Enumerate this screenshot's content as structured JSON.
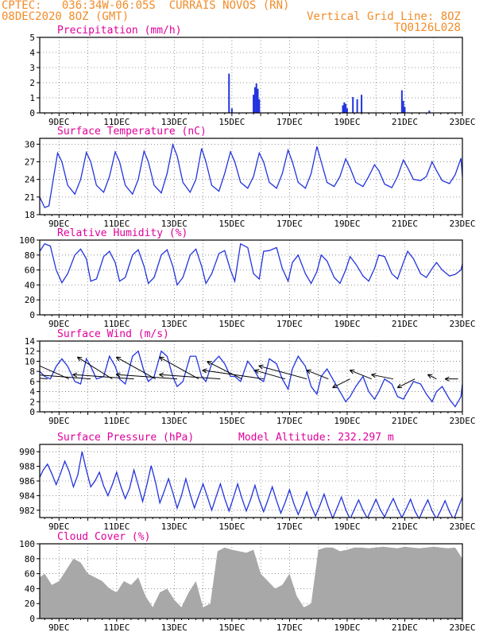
{
  "header": {
    "line1_left": "CPTEC:   036:34W-06:05S  CURRAIS NOVOS (RN)",
    "line2_left": "08DEC2020 8OZ (GMT)",
    "line1_right": "Vertical Grid Line: 8OZ",
    "line2_right": "TQ0126L028"
  },
  "colors": {
    "header": "#f28c28",
    "title": "#e0009a",
    "line": "#2233dd",
    "cloud": "#a8a8a8"
  },
  "chart_data": [
    {
      "type": "bar",
      "title": "Precipitation (mm/h)",
      "x_tick_labels": [
        "9DEC",
        "11DEC",
        "13DEC",
        "15DEC",
        "17DEC",
        "19DEC",
        "21DEC",
        "23DEC"
      ],
      "xlim_days": [
        8.33,
        23.0
      ],
      "ylim": [
        0,
        5
      ],
      "y_ticks": [
        0,
        1,
        2,
        3,
        4,
        5
      ],
      "bars": [
        [
          9.5,
          0.05
        ],
        [
          11.5,
          0.04
        ],
        [
          13.2,
          0.03
        ],
        [
          14.9,
          2.6
        ],
        [
          15.0,
          0.3
        ],
        [
          15.75,
          1.2
        ],
        [
          15.8,
          1.7
        ],
        [
          15.85,
          1.95
        ],
        [
          15.9,
          1.6
        ],
        [
          15.95,
          0.9
        ],
        [
          18.85,
          0.5
        ],
        [
          18.9,
          0.7
        ],
        [
          18.95,
          0.6
        ],
        [
          19.0,
          0.3
        ],
        [
          19.2,
          1.05
        ],
        [
          19.35,
          0.9
        ],
        [
          19.5,
          1.2
        ],
        [
          20.9,
          1.5
        ],
        [
          20.95,
          0.8
        ],
        [
          21.0,
          0.4
        ],
        [
          21.85,
          0.15
        ]
      ]
    },
    {
      "type": "line",
      "title": "Surface Temperature (nC)",
      "x_tick_labels": [
        "9DEC",
        "11DEC",
        "13DEC",
        "15DEC",
        "17DEC",
        "19DEC",
        "21DEC",
        "23DEC"
      ],
      "xlim_days": [
        8.33,
        23.0
      ],
      "ylim": [
        18,
        31
      ],
      "y_ticks": [
        18,
        21,
        24,
        27,
        30
      ],
      "x": [
        8.33,
        8.5,
        8.65,
        8.8,
        8.95,
        9.1,
        9.3,
        9.55,
        9.75,
        9.95,
        10.1,
        10.3,
        10.55,
        10.75,
        10.95,
        11.1,
        11.3,
        11.55,
        11.75,
        11.95,
        12.1,
        12.3,
        12.55,
        12.75,
        12.95,
        13.1,
        13.3,
        13.55,
        13.75,
        13.95,
        14.1,
        14.3,
        14.55,
        14.75,
        14.95,
        15.1,
        15.3,
        15.55,
        15.75,
        15.95,
        16.1,
        16.3,
        16.55,
        16.75,
        16.95,
        17.1,
        17.3,
        17.55,
        17.75,
        17.95,
        18.1,
        18.3,
        18.55,
        18.75,
        18.95,
        19.1,
        19.3,
        19.55,
        19.75,
        19.95,
        20.1,
        20.3,
        20.55,
        20.75,
        20.95,
        21.1,
        21.3,
        21.55,
        21.75,
        21.95,
        22.1,
        22.3,
        22.55,
        22.75,
        22.95,
        23.0
      ],
      "y": [
        21,
        19.2,
        19.5,
        24,
        28.5,
        27,
        23,
        21.5,
        24,
        28.6,
        27,
        23,
        21.8,
        24.5,
        28.7,
        27,
        23,
        21.5,
        24,
        28.8,
        27,
        23,
        21.7,
        25,
        29.9,
        28,
        23.5,
        21.8,
        24,
        29.3,
        27,
        23,
        22,
        25,
        28.7,
        27,
        23.5,
        22.5,
        24.5,
        28.5,
        27,
        23.5,
        22.5,
        25,
        29,
        27,
        23.5,
        22.5,
        25,
        29.6,
        27,
        23.5,
        22.8,
        24.5,
        27.5,
        26,
        23.5,
        22.8,
        24.5,
        26.5,
        25.5,
        23.2,
        22.6,
        24.5,
        27.3,
        26,
        24,
        23.8,
        24.5,
        27,
        25.5,
        23.8,
        23.3,
        24.8,
        27.6,
        24.5
      ]
    },
    {
      "type": "line",
      "title": "Relative Humidity (%)",
      "x_tick_labels": [
        "9DEC",
        "11DEC",
        "13DEC",
        "15DEC",
        "17DEC",
        "19DEC",
        "21DEC",
        "23DEC"
      ],
      "xlim_days": [
        8.33,
        23.0
      ],
      "ylim": [
        0,
        100
      ],
      "y_ticks": [
        0,
        20,
        40,
        60,
        80,
        100
      ],
      "x": [
        8.33,
        8.5,
        8.7,
        8.9,
        9.1,
        9.3,
        9.55,
        9.75,
        9.95,
        10.1,
        10.3,
        10.55,
        10.75,
        10.95,
        11.1,
        11.3,
        11.55,
        11.75,
        11.95,
        12.1,
        12.3,
        12.55,
        12.75,
        12.95,
        13.1,
        13.3,
        13.55,
        13.75,
        13.95,
        14.1,
        14.3,
        14.55,
        14.75,
        14.95,
        15.1,
        15.3,
        15.55,
        15.75,
        15.95,
        16.1,
        16.3,
        16.55,
        16.75,
        16.95,
        17.1,
        17.3,
        17.55,
        17.75,
        17.95,
        18.1,
        18.3,
        18.55,
        18.75,
        18.95,
        19.1,
        19.3,
        19.55,
        19.75,
        19.95,
        20.1,
        20.3,
        20.55,
        20.75,
        20.95,
        21.1,
        21.3,
        21.55,
        21.75,
        21.95,
        22.1,
        22.3,
        22.55,
        22.75,
        22.95,
        23.0
      ],
      "y": [
        85,
        95,
        92,
        60,
        43,
        55,
        80,
        88,
        75,
        45,
        48,
        78,
        85,
        70,
        45,
        50,
        80,
        87,
        65,
        42,
        50,
        80,
        87,
        65,
        40,
        50,
        80,
        88,
        65,
        42,
        55,
        82,
        86,
        60,
        45,
        95,
        90,
        55,
        48,
        85,
        86,
        90,
        62,
        45,
        70,
        80,
        55,
        42,
        58,
        80,
        72,
        50,
        42,
        60,
        78,
        68,
        52,
        45,
        62,
        80,
        78,
        55,
        48,
        70,
        85,
        75,
        55,
        50,
        62,
        70,
        60,
        52,
        54,
        60,
        68
      ]
    },
    {
      "type": "line",
      "title": "Surface Wind (m/s)",
      "x_tick_labels": [
        "9DEC",
        "11DEC",
        "13DEC",
        "15DEC",
        "17DEC",
        "19DEC",
        "21DEC",
        "23DEC"
      ],
      "xlim_days": [
        8.33,
        23.0
      ],
      "ylim": [
        0,
        14
      ],
      "y_ticks": [
        0,
        2,
        4,
        6,
        8,
        10,
        12,
        14
      ],
      "x": [
        8.33,
        8.5,
        8.7,
        8.9,
        9.1,
        9.3,
        9.55,
        9.75,
        9.95,
        10.1,
        10.3,
        10.55,
        10.75,
        10.95,
        11.1,
        11.3,
        11.55,
        11.75,
        11.95,
        12.1,
        12.3,
        12.55,
        12.75,
        12.95,
        13.1,
        13.3,
        13.55,
        13.75,
        13.95,
        14.1,
        14.3,
        14.55,
        14.75,
        14.95,
        15.1,
        15.3,
        15.55,
        15.75,
        15.95,
        16.1,
        16.3,
        16.55,
        16.75,
        16.95,
        17.1,
        17.3,
        17.55,
        17.75,
        17.95,
        18.1,
        18.3,
        18.55,
        18.75,
        18.95,
        19.1,
        19.3,
        19.55,
        19.75,
        19.95,
        20.1,
        20.3,
        20.55,
        20.75,
        20.95,
        21.1,
        21.3,
        21.55,
        21.75,
        21.95,
        22.1,
        22.3,
        22.55,
        22.75,
        22.95,
        23.0
      ],
      "y": [
        8,
        7,
        6.5,
        9,
        10.5,
        9,
        6,
        5.5,
        10.5,
        9,
        6.5,
        7,
        11,
        9,
        6.5,
        5.5,
        11,
        12,
        8,
        6,
        7,
        12,
        11,
        7,
        5,
        6,
        11,
        11,
        7,
        6,
        9.5,
        11,
        9.5,
        7,
        7,
        6,
        10,
        8.5,
        6.5,
        6,
        10.5,
        9.5,
        6.5,
        4.5,
        8.5,
        11,
        9,
        5,
        3.5,
        7,
        8.5,
        6,
        4,
        2,
        3,
        5,
        7,
        4,
        2.5,
        4,
        6.5,
        5.5,
        3,
        2.5,
        4,
        6,
        5.5,
        3.5,
        2,
        4,
        5,
        2.5,
        1,
        3,
        5.5
      ],
      "vectors": [
        {
          "x": 8.6,
          "u": -5.5,
          "v": 0.5
        },
        {
          "x": 9.35,
          "u": -4.5,
          "v": 2
        },
        {
          "x": 10.1,
          "u": -6.5,
          "v": 0.5
        },
        {
          "x": 10.85,
          "u": -4,
          "v": 2.5
        },
        {
          "x": 11.6,
          "u": -7,
          "v": 0.5
        },
        {
          "x": 12.35,
          "u": -4.5,
          "v": 2.5
        },
        {
          "x": 13.1,
          "u": -7,
          "v": 0.5
        },
        {
          "x": 13.85,
          "u": -4.5,
          "v": 2.5
        },
        {
          "x": 14.6,
          "u": -7,
          "v": 0.5
        },
        {
          "x": 15.35,
          "u": -4,
          "v": 2
        },
        {
          "x": 16.1,
          "u": -7,
          "v": 1
        },
        {
          "x": 16.85,
          "u": -3.5,
          "v": 1
        },
        {
          "x": 17.6,
          "u": -5.5,
          "v": 1.5
        },
        {
          "x": 18.35,
          "u": -2.5,
          "v": 1
        },
        {
          "x": 19.1,
          "u": -2,
          "v": -1
        },
        {
          "x": 19.85,
          "u": -2.5,
          "v": 1
        },
        {
          "x": 20.6,
          "u": -2.5,
          "v": 0.5
        },
        {
          "x": 21.35,
          "u": -2,
          "v": -1
        },
        {
          "x": 22.1,
          "u": -1,
          "v": 0.5
        },
        {
          "x": 22.85,
          "u": -1.5,
          "v": 0
        }
      ]
    },
    {
      "type": "line",
      "title": "Surface Pressure (hPa)",
      "annotation": "Model Altitude: 232.297 m",
      "x_tick_labels": [
        "9DEC",
        "11DEC",
        "13DEC",
        "15DEC",
        "17DEC",
        "19DEC",
        "21DEC",
        "23DEC"
      ],
      "xlim_days": [
        8.33,
        23.0
      ],
      "ylim": [
        981,
        991
      ],
      "y_ticks": [
        982,
        984,
        986,
        988,
        990
      ],
      "x": [
        8.33,
        8.45,
        8.6,
        8.75,
        8.9,
        9.05,
        9.2,
        9.35,
        9.5,
        9.65,
        9.8,
        9.95,
        10.1,
        10.25,
        10.4,
        10.55,
        10.7,
        10.85,
        11.0,
        11.15,
        11.3,
        11.45,
        11.6,
        11.75,
        11.9,
        12.05,
        12.2,
        12.35,
        12.5,
        12.65,
        12.8,
        12.95,
        13.1,
        13.25,
        13.4,
        13.55,
        13.7,
        13.85,
        14.0,
        14.15,
        14.3,
        14.45,
        14.6,
        14.75,
        14.9,
        15.05,
        15.2,
        15.35,
        15.5,
        15.65,
        15.8,
        15.95,
        16.1,
        16.25,
        16.4,
        16.55,
        16.7,
        16.85,
        17.0,
        17.15,
        17.3,
        17.45,
        17.6,
        17.75,
        17.9,
        18.05,
        18.2,
        18.35,
        18.5,
        18.65,
        18.8,
        18.95,
        19.1,
        19.25,
        19.4,
        19.55,
        19.7,
        19.85,
        20.0,
        20.15,
        20.3,
        20.45,
        20.6,
        20.75,
        20.9,
        21.05,
        21.2,
        21.35,
        21.5,
        21.65,
        21.8,
        21.95,
        22.1,
        22.25,
        22.4,
        22.55,
        22.7,
        22.85,
        23.0
      ],
      "y": [
        986.5,
        987.5,
        988.3,
        987,
        985.5,
        987,
        988.7,
        987.3,
        985.2,
        986.8,
        990,
        987.5,
        985.2,
        986,
        987.2,
        985.3,
        984,
        985.5,
        987.2,
        985.2,
        983.6,
        985,
        987.5,
        985.4,
        983.2,
        985.5,
        988.1,
        985.8,
        983,
        984.6,
        986.3,
        984.4,
        982.3,
        984,
        986.3,
        984.2,
        982.3,
        984,
        985.6,
        983.8,
        982,
        983.8,
        985.6,
        983.6,
        981.9,
        983.7,
        985.6,
        983.6,
        981.9,
        983.5,
        985.4,
        983.4,
        981.8,
        983.4,
        985.2,
        983.3,
        981.6,
        983.1,
        984.8,
        982.9,
        981.4,
        982.8,
        984.5,
        982.6,
        981.2,
        982.6,
        984.2,
        982.4,
        980.9,
        982.3,
        983.8,
        982.1,
        980.8,
        982.1,
        983.4,
        982,
        980.9,
        982.2,
        983.5,
        982.1,
        981.1,
        982.4,
        983.6,
        982.2,
        981,
        982.2,
        983.5,
        981.9,
        980.8,
        982.2,
        983.4,
        981.9,
        980.8,
        982,
        983.3,
        981.8,
        980.7,
        982.3,
        983.8
      ]
    },
    {
      "type": "area",
      "title": "Cloud Cover (%)",
      "x_tick_labels": [
        "9DEC",
        "11DEC",
        "13DEC",
        "15DEC",
        "17DEC",
        "19DEC",
        "21DEC",
        "23DEC"
      ],
      "xlim_days": [
        8.33,
        23.0
      ],
      "ylim": [
        0,
        100
      ],
      "y_ticks": [
        0,
        20,
        40,
        60,
        80,
        100
      ],
      "x": [
        8.33,
        8.5,
        8.75,
        9.0,
        9.25,
        9.5,
        9.75,
        10.0,
        10.25,
        10.5,
        10.75,
        11.0,
        11.25,
        11.5,
        11.75,
        12.0,
        12.25,
        12.5,
        12.75,
        13.0,
        13.25,
        13.5,
        13.75,
        14.0,
        14.25,
        14.5,
        14.75,
        15.0,
        15.25,
        15.5,
        15.75,
        16.0,
        16.25,
        16.5,
        16.75,
        17.0,
        17.25,
        17.5,
        17.75,
        18.0,
        18.25,
        18.5,
        18.75,
        19.0,
        19.25,
        19.5,
        19.75,
        20.0,
        20.25,
        20.5,
        20.75,
        21.0,
        21.25,
        21.5,
        21.75,
        22.0,
        22.25,
        22.5,
        22.75,
        23.0
      ],
      "y": [
        55,
        60,
        45,
        50,
        65,
        80,
        75,
        60,
        55,
        50,
        40,
        35,
        50,
        45,
        55,
        30,
        15,
        35,
        40,
        25,
        15,
        35,
        50,
        15,
        20,
        90,
        95,
        92,
        90,
        88,
        92,
        60,
        50,
        40,
        45,
        60,
        30,
        15,
        20,
        92,
        95,
        95,
        90,
        92,
        95,
        95,
        94,
        95,
        96,
        95,
        94,
        96,
        95,
        94,
        95,
        96,
        95,
        94,
        95,
        80
      ]
    }
  ]
}
